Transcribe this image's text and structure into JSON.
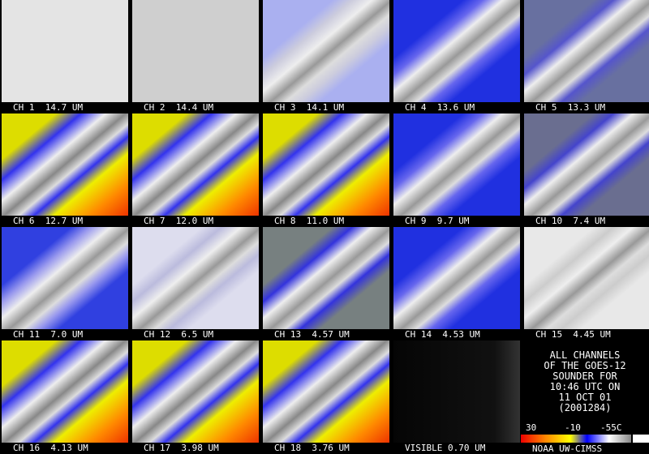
{
  "panels": [
    {
      "label": "CH 1  14.7 UM"
    },
    {
      "label": "CH 2  14.4 UM"
    },
    {
      "label": "CH 3  14.1 UM"
    },
    {
      "label": "CH 4  13.6 UM"
    },
    {
      "label": "CH 5  13.3 UM"
    },
    {
      "label": "CH 6  12.7 UM"
    },
    {
      "label": "CH 7  12.0 UM"
    },
    {
      "label": "CH 8  11.0 UM"
    },
    {
      "label": "CH 9  9.7 UM"
    },
    {
      "label": "CH 10  7.4 UM"
    },
    {
      "label": "CH 11  7.0 UM"
    },
    {
      "label": "CH 12  6.5 UM"
    },
    {
      "label": "CH 13  4.57 UM"
    },
    {
      "label": "CH 14  4.53 UM"
    },
    {
      "label": "CH 15  4.45 UM"
    },
    {
      "label": "CH 16  4.13 UM"
    },
    {
      "label": "CH 17  3.98 UM"
    },
    {
      "label": "CH 18  3.76 UM"
    },
    {
      "label": "VISIBLE 0.70 UM"
    }
  ],
  "info": {
    "lines": [
      "ALL CHANNELS",
      "OF THE GOES-12",
      "SOUNDER FOR",
      "10:46 UTC ON",
      "11 OCT 01",
      "(2001284)"
    ],
    "colorbar_labels": [
      "30",
      "-10",
      "-55C"
    ],
    "credit": "NOAA UW-CIMSS"
  }
}
